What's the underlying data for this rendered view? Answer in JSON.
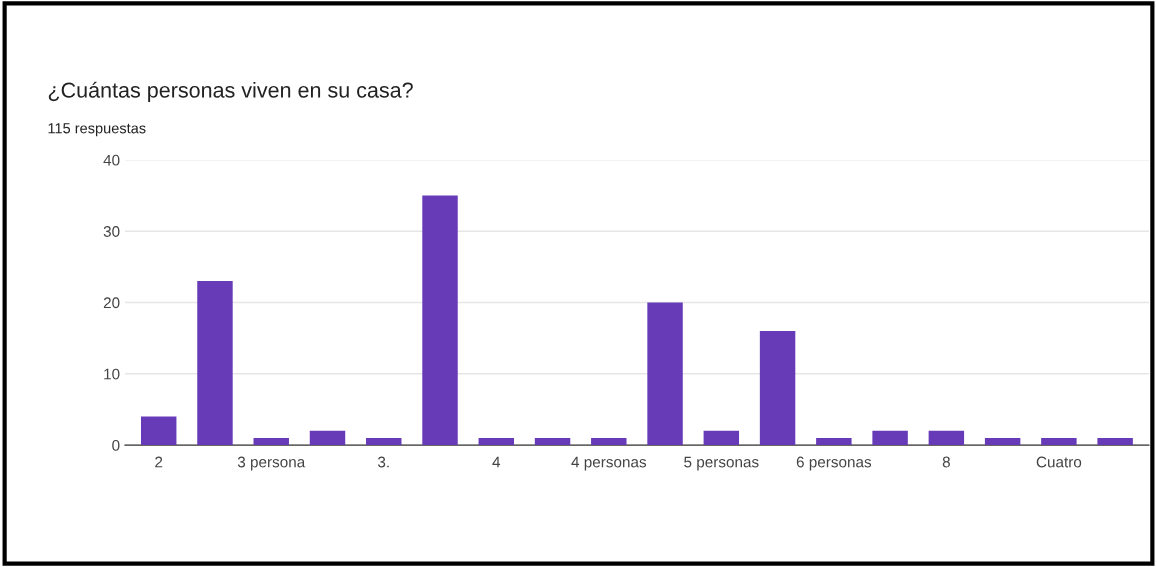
{
  "chart_data": {
    "type": "bar",
    "title": "¿Cuántas personas viven en su casa?",
    "subtitle": "115 respuestas",
    "categories": [
      "2",
      null,
      "3 persona",
      null,
      "3.",
      null,
      "4",
      null,
      "4 personas",
      null,
      "5 personas",
      null,
      "6 personas",
      null,
      "8",
      null,
      "Cuatro",
      null
    ],
    "values": [
      4,
      23,
      1,
      2,
      1,
      35,
      1,
      1,
      1,
      20,
      2,
      16,
      1,
      2,
      2,
      1,
      1,
      1
    ],
    "color": "#673ab7",
    "ylim": [
      0,
      40
    ],
    "yticks": [
      0,
      10,
      20,
      30,
      40
    ],
    "grid": "y"
  }
}
